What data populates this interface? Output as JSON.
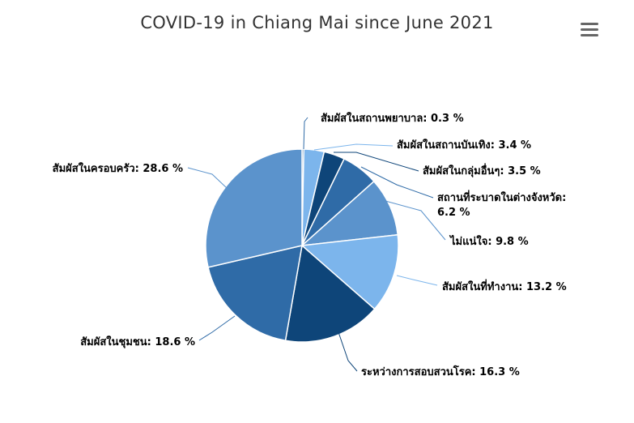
{
  "chart_data": {
    "type": "pie",
    "title": "COVID-19 in Chiang Mai since June 2021",
    "colors": [
      "#7cb5ec",
      "#0e4579",
      "#2f6ba7",
      "#5b93cc",
      "#7cb5ec",
      "#0e4579",
      "#2f6ba7",
      "#5b93cc"
    ],
    "slices": [
      {
        "name": "สัมผัสในสถานพยาบาล",
        "value": 0.3,
        "label": "สัมผัสในสถานพยาบาล: 0.3 %",
        "color": "#2f6ba7"
      },
      {
        "name": "สัมผัสในสถานบันเทิง",
        "value": 3.4,
        "label": "สัมผัสในสถานบันเทิง: 3.4 %",
        "color": "#7cb5ec"
      },
      {
        "name": "สัมผัสในกลุ่มอื่นๆ",
        "value": 3.5,
        "label": "สัมผัสในกลุ่มอื่นๆ: 3.5 %",
        "color": "#0e4579"
      },
      {
        "name": "สถานที่ระบาดในต่างจังหวัด",
        "value": 6.2,
        "label_lines": [
          "สถานที่ระบาดในต่างจังหวัด:",
          "6.2 %"
        ],
        "color": "#2f6ba7"
      },
      {
        "name": "ไม่แน่ใจ",
        "value": 9.8,
        "label": "ไม่แน่ใจ: 9.8 %",
        "color": "#5b93cc"
      },
      {
        "name": "สัมผัสในที่ทำงาน",
        "value": 13.2,
        "label": "สัมผัสในที่ทำงาน: 13.2 %",
        "color": "#7cb5ec"
      },
      {
        "name": "ระหว่างการสอบสวนโรค",
        "value": 16.3,
        "label": "ระหว่างการสอบสวนโรค: 16.3 %",
        "color": "#0e4579"
      },
      {
        "name": "สัมผัสในชุมชน",
        "value": 18.6,
        "label": "สัมผัสในชุมชน: 18.6 %",
        "color": "#2f6ba7"
      },
      {
        "name": "สัมผัสในครอบครัว",
        "value": 28.6,
        "label": "สัมผัสในครอบครัว: 28.6 %",
        "color": "#5b93cc"
      }
    ]
  },
  "menu": {
    "icon": "hamburger-menu-icon"
  }
}
